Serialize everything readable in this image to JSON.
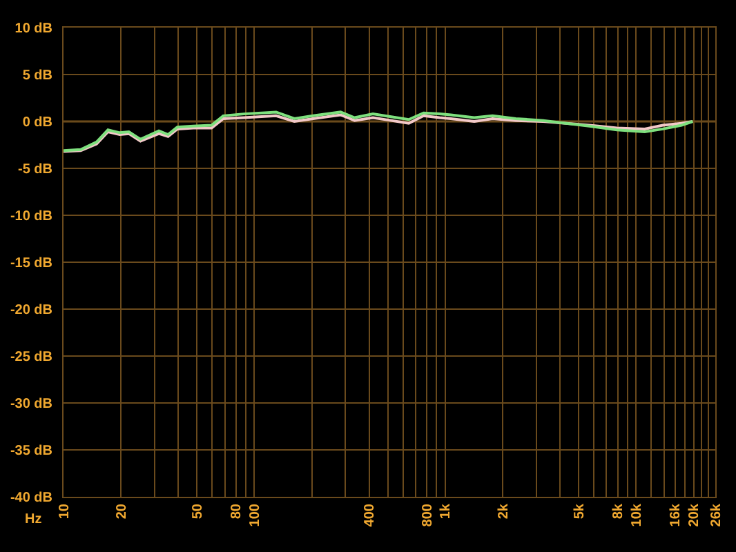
{
  "chart_data": {
    "type": "line",
    "xlabel": "Hz",
    "log": "x",
    "grid": true,
    "xlim": [
      10,
      26000
    ],
    "xticks": [
      10,
      20,
      {
        "value": 30,
        "label": null
      },
      {
        "value": 40,
        "label": null
      },
      50,
      {
        "value": 60,
        "label": null
      },
      {
        "value": 70,
        "label": null
      },
      80,
      {
        "value": 90,
        "label": null
      },
      100,
      {
        "value": 200,
        "label": null
      },
      {
        "value": 300,
        "label": null
      },
      400,
      {
        "value": 500,
        "label": null
      },
      {
        "value": 600,
        "label": null
      },
      {
        "value": 700,
        "label": null
      },
      800,
      {
        "value": 900,
        "label": null
      },
      {
        "value": 1000,
        "label": "1k"
      },
      {
        "value": 2000,
        "label": "2k"
      },
      {
        "value": 3000,
        "label": null
      },
      {
        "value": 4000,
        "label": null
      },
      {
        "value": 5000,
        "label": "5k"
      },
      {
        "value": 6000,
        "label": null
      },
      {
        "value": 7000,
        "label": null
      },
      {
        "value": 8000,
        "label": "8k"
      },
      {
        "value": 9000,
        "label": null
      },
      {
        "value": 10000,
        "label": "10k"
      },
      {
        "value": 12000,
        "label": null
      },
      {
        "value": 14000,
        "label": null
      },
      {
        "value": 16000,
        "label": "16k"
      },
      {
        "value": 18000,
        "label": null
      },
      {
        "value": 20000,
        "label": "20k"
      },
      {
        "value": 22000,
        "label": null
      },
      {
        "value": 24000,
        "label": null
      },
      {
        "value": 26000,
        "label": "26k"
      }
    ],
    "ylim": [
      -40,
      10
    ],
    "yticks": [
      {
        "value": -40,
        "label": "-40 dB"
      },
      {
        "value": -35,
        "label": "-35 dB"
      },
      {
        "value": -30,
        "label": "-30 dB"
      },
      {
        "value": -25,
        "label": "-25 dB"
      },
      {
        "value": -20,
        "label": "-20 dB"
      },
      {
        "value": -15,
        "label": "-15 dB"
      },
      {
        "value": -10,
        "label": "-10 dB"
      },
      {
        "value": -5,
        "label": "-5 dB"
      },
      {
        "value": 0,
        "label": "0 dB"
      },
      {
        "value": 5,
        "label": "5 dB"
      },
      {
        "value": 10,
        "label": "10 dB"
      }
    ],
    "ref_lines": [
      {
        "axis": "y",
        "value": 0,
        "color": "#e8a030"
      }
    ],
    "x": [
      10,
      12.3,
      14.9,
      17.1,
      19.7,
      22,
      25.3,
      31.6,
      35.3,
      39.5,
      47.9,
      59.7,
      68.7,
      88,
      130,
      162,
      203,
      283,
      335,
      418,
      521,
      644,
      770,
      934,
      1070,
      1420,
      1770,
      2340,
      3260,
      4300,
      5690,
      7930,
      11100,
      13800,
      17300,
      19800
    ],
    "series": [
      {
        "color": "#f2c8c8",
        "values": [
          -3.2,
          -3.1,
          -2.4,
          -1.1,
          -1.4,
          -1.3,
          -2.1,
          -1.3,
          -1.6,
          -0.8,
          -0.7,
          -0.7,
          0.3,
          0.4,
          0.6,
          0.0,
          0.3,
          0.7,
          0.1,
          0.4,
          0.1,
          -0.2,
          0.6,
          0.4,
          0.3,
          0.0,
          0.3,
          0.1,
          0.0,
          -0.2,
          -0.4,
          -0.7,
          -0.8,
          -0.4,
          -0.2,
          0.0
        ]
      },
      {
        "color": "#7ee07e",
        "values": [
          -3.1,
          -3.0,
          -2.2,
          -0.9,
          -1.2,
          -1.1,
          -1.9,
          -1.0,
          -1.4,
          -0.6,
          -0.5,
          -0.4,
          0.6,
          0.8,
          1.0,
          0.3,
          0.6,
          1.0,
          0.4,
          0.8,
          0.5,
          0.2,
          0.9,
          0.8,
          0.7,
          0.4,
          0.6,
          0.3,
          0.1,
          -0.2,
          -0.5,
          -0.9,
          -1.1,
          -0.8,
          -0.4,
          0.0
        ]
      }
    ]
  }
}
